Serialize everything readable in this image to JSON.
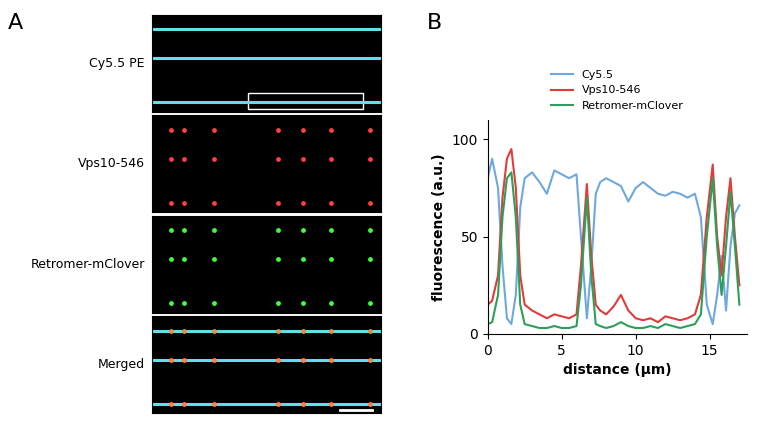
{
  "panel_labels": [
    "A",
    "B"
  ],
  "micrographs": {
    "labels": [
      "Cy5.5 PE",
      "Vps10-546",
      "Retromer-mClover",
      "Merged"
    ]
  },
  "chart_data": {
    "type": "line",
    "x": [
      0,
      0.3,
      0.7,
      1.0,
      1.3,
      1.6,
      1.9,
      2.2,
      2.5,
      3,
      3.5,
      4,
      4.5,
      5,
      5.5,
      6,
      6.3,
      6.7,
      7.0,
      7.3,
      7.6,
      8,
      8.5,
      9,
      9.5,
      10,
      10.5,
      11,
      11.5,
      12,
      12.5,
      13,
      13.5,
      14,
      14.4,
      14.8,
      15.2,
      15.5,
      15.8,
      16.1,
      16.4,
      16.7,
      17.0
    ],
    "series": [
      {
        "name": "Cy5.5",
        "color": "#6fa8dc",
        "values": [
          80,
          90,
          75,
          35,
          8,
          5,
          20,
          65,
          80,
          83,
          78,
          72,
          84,
          82,
          80,
          82,
          50,
          8,
          35,
          72,
          78,
          80,
          78,
          76,
          68,
          75,
          78,
          75,
          72,
          71,
          73,
          72,
          70,
          72,
          60,
          15,
          5,
          20,
          40,
          12,
          45,
          62,
          66
        ]
      },
      {
        "name": "Vps10-546",
        "color": "#e03c3c",
        "values": [
          15,
          17,
          30,
          70,
          90,
          95,
          75,
          30,
          15,
          12,
          10,
          8,
          10,
          9,
          8,
          10,
          35,
          77,
          40,
          15,
          12,
          10,
          14,
          20,
          12,
          8,
          7,
          8,
          6,
          9,
          8,
          7,
          8,
          10,
          20,
          60,
          87,
          50,
          30,
          60,
          80,
          50,
          25
        ]
      },
      {
        "name": "Retromer-mClover",
        "color": "#2ca05a",
        "values": [
          5,
          6,
          20,
          60,
          80,
          83,
          60,
          15,
          5,
          4,
          3,
          3,
          4,
          3,
          3,
          4,
          25,
          70,
          30,
          5,
          4,
          3,
          4,
          6,
          4,
          3,
          3,
          4,
          3,
          5,
          4,
          3,
          4,
          5,
          10,
          50,
          80,
          45,
          20,
          45,
          73,
          45,
          15
        ]
      }
    ],
    "x_label": "distance (µm)",
    "y_label": "fluorescence (a.u.)",
    "xlim": [
      0,
      17.5
    ],
    "xticks": [
      0,
      5,
      10,
      15
    ],
    "ylim": [
      0,
      110
    ],
    "yticks": [
      0,
      50,
      100
    ],
    "legend": "upper center"
  }
}
